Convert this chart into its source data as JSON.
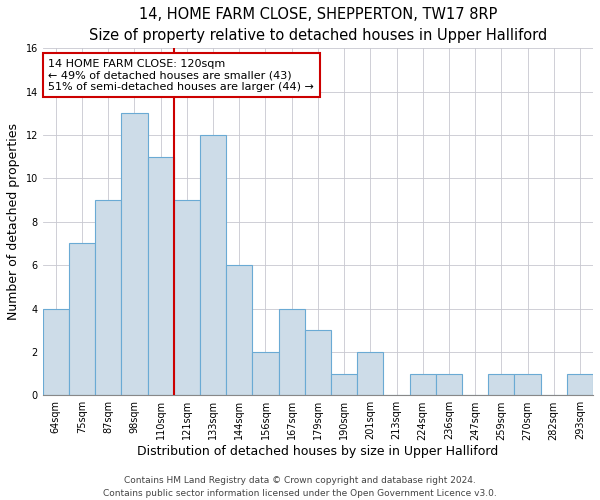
{
  "title": "14, HOME FARM CLOSE, SHEPPERTON, TW17 8RP",
  "subtitle": "Size of property relative to detached houses in Upper Halliford",
  "xlabel": "Distribution of detached houses by size in Upper Halliford",
  "ylabel": "Number of detached properties",
  "bar_labels": [
    "64sqm",
    "75sqm",
    "87sqm",
    "98sqm",
    "110sqm",
    "121sqm",
    "133sqm",
    "144sqm",
    "156sqm",
    "167sqm",
    "179sqm",
    "190sqm",
    "201sqm",
    "213sqm",
    "224sqm",
    "236sqm",
    "247sqm",
    "259sqm",
    "270sqm",
    "282sqm",
    "293sqm"
  ],
  "bar_values": [
    4,
    7,
    9,
    13,
    11,
    9,
    12,
    6,
    2,
    4,
    3,
    1,
    2,
    0,
    1,
    1,
    0,
    1,
    1,
    0,
    1
  ],
  "bar_color": "#cddce8",
  "bar_edgecolor": "#6aaad4",
  "vline_after_index": 4,
  "vline_color": "#cc0000",
  "annotation_text": "14 HOME FARM CLOSE: 120sqm\n← 49% of detached houses are smaller (43)\n51% of semi-detached houses are larger (44) →",
  "annotation_box_edgecolor": "#cc0000",
  "annotation_box_facecolor": "#ffffff",
  "ylim": [
    0,
    16
  ],
  "yticks": [
    0,
    2,
    4,
    6,
    8,
    10,
    12,
    14,
    16
  ],
  "footer1": "Contains HM Land Registry data © Crown copyright and database right 2024.",
  "footer2": "Contains public sector information licensed under the Open Government Licence v3.0.",
  "title_fontsize": 10.5,
  "subtitle_fontsize": 9.5,
  "axis_label_fontsize": 9,
  "tick_fontsize": 7,
  "annotation_fontsize": 8,
  "footer_fontsize": 6.5
}
